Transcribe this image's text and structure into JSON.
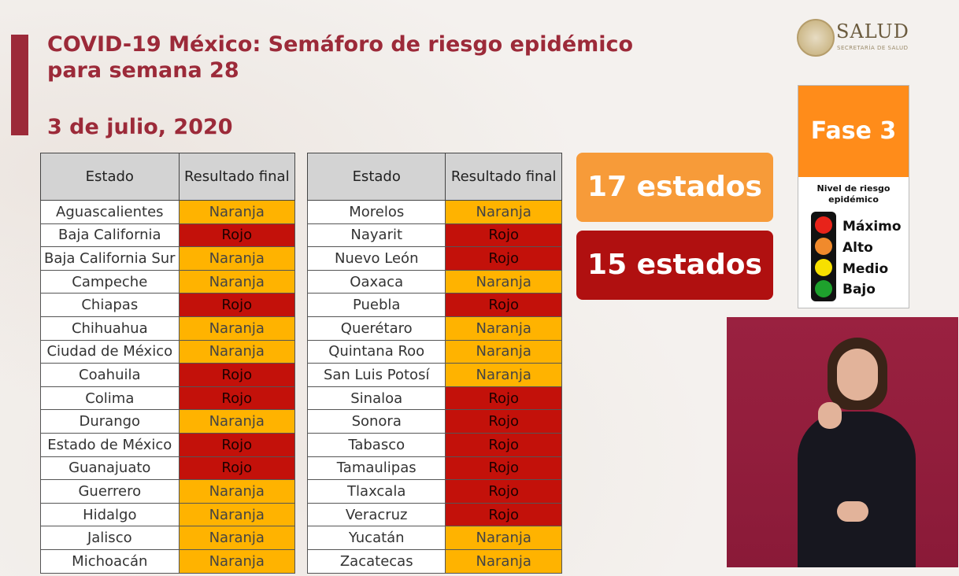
{
  "header": {
    "title": "COVID-19 México: Semáforo de riesgo epidémico para semana 28",
    "date": "3 de julio, 2020"
  },
  "logo": {
    "name": "SALUD",
    "subtitle": "SECRETARÍA DE SALUD"
  },
  "table": {
    "col_state": "Estado",
    "col_result": "Resultado final",
    "left": [
      {
        "state": "Aguascalientes",
        "result": "Naranja"
      },
      {
        "state": "Baja California",
        "result": "Rojo"
      },
      {
        "state": "Baja California Sur",
        "result": "Naranja"
      },
      {
        "state": "Campeche",
        "result": "Naranja"
      },
      {
        "state": "Chiapas",
        "result": "Rojo"
      },
      {
        "state": "Chihuahua",
        "result": "Naranja"
      },
      {
        "state": "Ciudad de México",
        "result": "Naranja"
      },
      {
        "state": "Coahuila",
        "result": "Rojo"
      },
      {
        "state": "Colima",
        "result": "Rojo"
      },
      {
        "state": "Durango",
        "result": "Naranja"
      },
      {
        "state": "Estado de México",
        "result": "Rojo"
      },
      {
        "state": "Guanajuato",
        "result": "Rojo"
      },
      {
        "state": "Guerrero",
        "result": "Naranja"
      },
      {
        "state": "Hidalgo",
        "result": "Naranja"
      },
      {
        "state": "Jalisco",
        "result": "Naranja"
      },
      {
        "state": "Michoacán",
        "result": "Naranja"
      }
    ],
    "right": [
      {
        "state": "Morelos",
        "result": "Naranja"
      },
      {
        "state": "Nayarit",
        "result": "Rojo"
      },
      {
        "state": "Nuevo León",
        "result": "Rojo"
      },
      {
        "state": "Oaxaca",
        "result": "Naranja"
      },
      {
        "state": "Puebla",
        "result": "Rojo"
      },
      {
        "state": "Querétaro",
        "result": "Naranja"
      },
      {
        "state": "Quintana Roo",
        "result": "Naranja"
      },
      {
        "state": "San Luis Potosí",
        "result": "Naranja"
      },
      {
        "state": "Sinaloa",
        "result": "Rojo"
      },
      {
        "state": "Sonora",
        "result": "Rojo"
      },
      {
        "state": "Tabasco",
        "result": "Rojo"
      },
      {
        "state": "Tamaulipas",
        "result": "Rojo"
      },
      {
        "state": "Tlaxcala",
        "result": "Rojo"
      },
      {
        "state": "Veracruz",
        "result": "Rojo"
      },
      {
        "state": "Yucatán",
        "result": "Naranja"
      },
      {
        "state": "Zacatecas",
        "result": "Naranja"
      }
    ]
  },
  "summary": {
    "orange_count": "17 estados",
    "red_count": "15 estados"
  },
  "legend": {
    "phase": "Fase 3",
    "heading": "Nivel de riesgo epidémico",
    "levels": [
      "Máximo",
      "Alto",
      "Medio",
      "Bajo"
    ]
  },
  "colors": {
    "naranja": "#ffb300",
    "rojo": "#c3110a",
    "brand": "#9c2a39"
  }
}
